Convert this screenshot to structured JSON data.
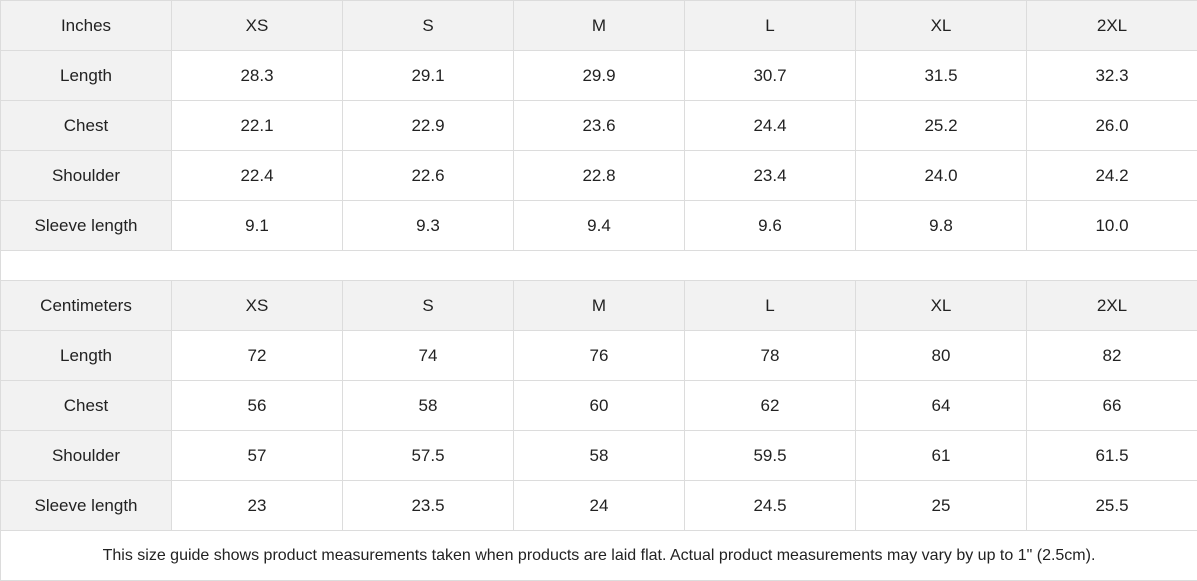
{
  "tables": [
    {
      "unit": "Inches",
      "sizes": [
        "XS",
        "S",
        "M",
        "L",
        "XL",
        "2XL"
      ],
      "rows": [
        {
          "label": "Length",
          "values": [
            "28.3",
            "29.1",
            "29.9",
            "30.7",
            "31.5",
            "32.3"
          ]
        },
        {
          "label": "Chest",
          "values": [
            "22.1",
            "22.9",
            "23.6",
            "24.4",
            "25.2",
            "26.0"
          ]
        },
        {
          "label": "Shoulder",
          "values": [
            "22.4",
            "22.6",
            "22.8",
            "23.4",
            "24.0",
            "24.2"
          ]
        },
        {
          "label": "Sleeve length",
          "values": [
            "9.1",
            "9.3",
            "9.4",
            "9.6",
            "9.8",
            "10.0"
          ]
        }
      ]
    },
    {
      "unit": "Centimeters",
      "sizes": [
        "XS",
        "S",
        "M",
        "L",
        "XL",
        "2XL"
      ],
      "rows": [
        {
          "label": "Length",
          "values": [
            "72",
            "74",
            "76",
            "78",
            "80",
            "82"
          ]
        },
        {
          "label": "Chest",
          "values": [
            "56",
            "58",
            "60",
            "62",
            "64",
            "66"
          ]
        },
        {
          "label": "Shoulder",
          "values": [
            "57",
            "57.5",
            "58",
            "59.5",
            "61",
            "61.5"
          ]
        },
        {
          "label": "Sleeve length",
          "values": [
            "23",
            "23.5",
            "24",
            "24.5",
            "25",
            "25.5"
          ]
        }
      ]
    }
  ],
  "note": "This size guide shows product measurements taken when products are laid flat.  Actual product measurements may vary by up to 1\" (2.5cm)."
}
